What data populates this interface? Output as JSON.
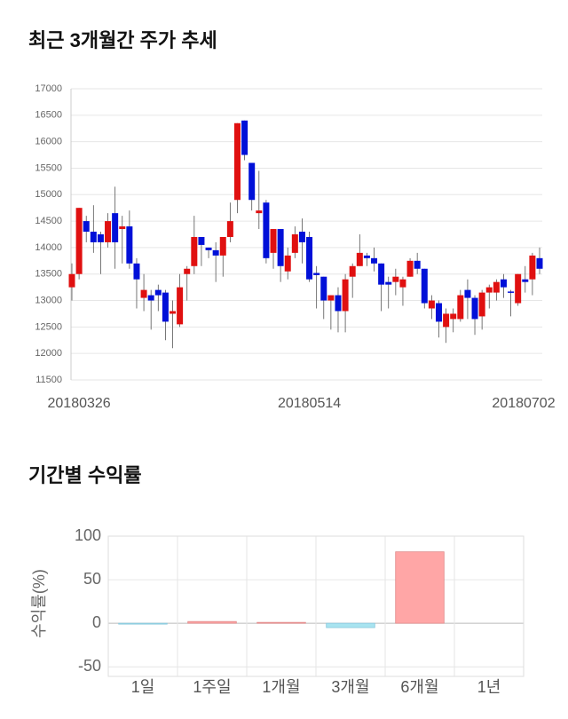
{
  "chart_data": [
    {
      "type": "candlestick",
      "title": "최근 3개월간 주가 추세",
      "categories": [
        null,
        "20180326",
        null,
        null,
        null,
        null,
        null,
        null,
        null,
        null,
        null,
        null,
        null,
        null,
        null,
        null,
        null,
        null,
        null,
        null,
        null,
        null,
        null,
        null,
        null,
        null,
        null,
        null,
        null,
        null,
        null,
        null,
        null,
        "20180514",
        null,
        null,
        null,
        null,
        null,
        null,
        null,
        null,
        null,
        null,
        null,
        null,
        null,
        null,
        null,
        null,
        null,
        null,
        null,
        null,
        null,
        null,
        null,
        null,
        null,
        null,
        null,
        null,
        null,
        null,
        null,
        "20180702"
      ],
      "open": [
        13250,
        13500,
        14500,
        14300,
        14250,
        14100,
        14650,
        14350,
        14400,
        13700,
        13050,
        13100,
        13200,
        13150,
        12750,
        12550,
        13500,
        13650,
        14200,
        14000,
        13950,
        13850,
        14200,
        14900,
        16400,
        15600,
        14650,
        14850,
        13900,
        14350,
        13550,
        13900,
        14300,
        14200,
        13520,
        13450,
        13000,
        13100,
        12800,
        13450,
        13650,
        13850,
        13800,
        13700,
        13350,
        13350,
        13250,
        13450,
        13750,
        13600,
        12850,
        12950,
        12500,
        12650,
        12650,
        13200,
        13050,
        12700,
        13150,
        13150,
        13400,
        13170,
        12950,
        13400,
        13400,
        13800
      ],
      "high": [
        13700,
        14750,
        14600,
        14800,
        14300,
        14650,
        15150,
        14600,
        14700,
        13800,
        13500,
        13200,
        13300,
        13200,
        13000,
        13500,
        13650,
        14600,
        14200,
        14000,
        14100,
        14200,
        14850,
        16350,
        16400,
        15600,
        15450,
        14900,
        14350,
        14350,
        14000,
        14400,
        14550,
        14300,
        13650,
        13450,
        13100,
        13250,
        13500,
        13700,
        14250,
        13900,
        14000,
        13700,
        13450,
        13600,
        13450,
        13800,
        13900,
        13600,
        13100,
        13000,
        12850,
        12850,
        13200,
        13400,
        13100,
        13200,
        13300,
        13400,
        13500,
        13200,
        13500,
        13650,
        13900,
        14000
      ],
      "low": [
        13000,
        13400,
        14100,
        13900,
        13500,
        14000,
        13600,
        13700,
        13600,
        12850,
        12800,
        12450,
        12800,
        12250,
        12100,
        12500,
        13000,
        13500,
        13650,
        13800,
        13350,
        13450,
        14100,
        14650,
        15650,
        14700,
        14350,
        13700,
        13600,
        13350,
        13400,
        13800,
        13700,
        13350,
        12850,
        12650,
        12450,
        12400,
        12400,
        13050,
        13650,
        13650,
        13550,
        12800,
        12850,
        13100,
        12900,
        13450,
        13500,
        12850,
        12650,
        12300,
        12200,
        12400,
        12600,
        12650,
        12350,
        12450,
        12850,
        13000,
        13050,
        12700,
        12900,
        13150,
        13100,
        13500
      ],
      "close": [
        13500,
        14750,
        14300,
        14100,
        14100,
        14500,
        14100,
        14400,
        13700,
        13400,
        13200,
        13000,
        13100,
        12600,
        12800,
        13250,
        13600,
        14200,
        14050,
        13950,
        13850,
        14200,
        14500,
        16350,
        15750,
        14900,
        14700,
        13800,
        14350,
        13650,
        13850,
        14250,
        14100,
        13400,
        13480,
        13000,
        13100,
        12800,
        13400,
        13650,
        13900,
        13800,
        13700,
        13300,
        13300,
        13450,
        13400,
        13750,
        13600,
        12950,
        13000,
        12600,
        12750,
        12750,
        13100,
        13050,
        12650,
        13150,
        13250,
        13350,
        13250,
        13150,
        13500,
        13350,
        13850,
        13600
      ],
      "up_color": "#e01010",
      "down_color": "#0010d8",
      "ylim": [
        11500,
        17000
      ],
      "yticks": [
        11500,
        12000,
        12500,
        13000,
        13500,
        14000,
        14500,
        15000,
        15500,
        16000,
        16500,
        17000
      ],
      "grid": true
    },
    {
      "type": "bar",
      "title": "기간별 수익률",
      "y_label": "수익률(%)",
      "categories": [
        "1일",
        "1주일",
        "1개월",
        "3개월",
        "6개월",
        "1년"
      ],
      "values": [
        -0.5,
        2,
        1,
        -5,
        82,
        null
      ],
      "positive_color": "#ffa6a6",
      "negative_color": "#a8e4f0",
      "ylim": [
        -61,
        100
      ],
      "yticks": [
        -50,
        0,
        50,
        100
      ],
      "grid": true
    }
  ]
}
